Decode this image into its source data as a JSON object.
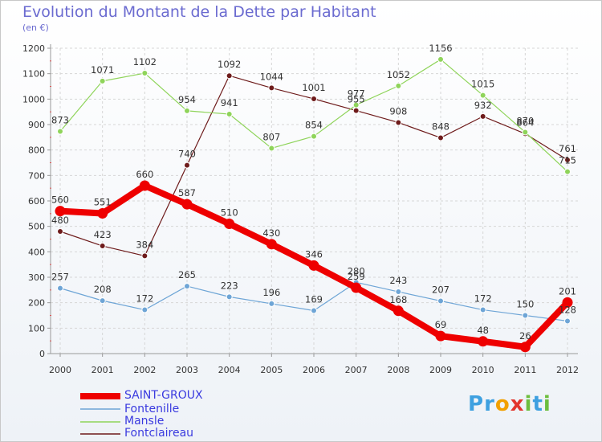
{
  "title": "Evolution du Montant de la Dette par Habitant",
  "subtitle": "(en €)",
  "logo": "Proxiti",
  "chart_data": {
    "type": "line",
    "title": "Evolution du Montant de la Dette par Habitant",
    "subtitle": "(en €)",
    "xlabel": "",
    "ylabel": "",
    "categories": [
      "2000",
      "2001",
      "2002",
      "2003",
      "2004",
      "2005",
      "2006",
      "2007",
      "2008",
      "2009",
      "2010",
      "2011",
      "2012"
    ],
    "ylim": [
      0,
      1200
    ],
    "yticks": [
      0,
      100,
      200,
      300,
      400,
      500,
      600,
      700,
      800,
      900,
      1000,
      1100,
      1200
    ],
    "grid": true,
    "legend": "bottom-left",
    "series": [
      {
        "name": "SAINT-GROUX",
        "color": "#ee0000",
        "values": [
          560,
          551,
          660,
          587,
          510,
          430,
          346,
          259,
          168,
          69,
          48,
          26,
          201
        ]
      },
      {
        "name": "Fontenille",
        "color": "#6ea5d6",
        "values": [
          257,
          208,
          172,
          265,
          223,
          196,
          169,
          280,
          243,
          207,
          172,
          150,
          128
        ]
      },
      {
        "name": "Mansle",
        "color": "#8fd45a",
        "values": [
          873,
          1071,
          1102,
          954,
          941,
          807,
          854,
          977,
          1052,
          1156,
          1015,
          870,
          715
        ]
      },
      {
        "name": "Fontclaireau",
        "color": "#6e1b1b",
        "values": [
          480,
          423,
          384,
          740,
          1092,
          1044,
          1001,
          955,
          908,
          848,
          932,
          864,
          761
        ]
      }
    ]
  }
}
